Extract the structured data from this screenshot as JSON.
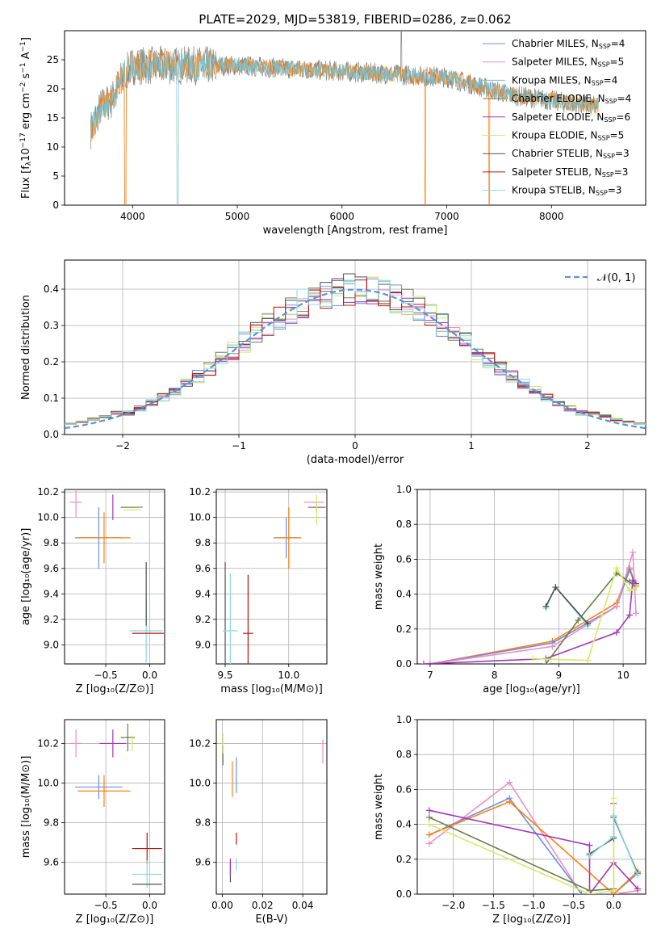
{
  "title": "PLATE=2029, MJD=53819, FIBERID=0286, z=0.062",
  "series_legend": [
    {
      "base": "Chabrier MILES, N",
      "sub": "SSP",
      "val": "=4",
      "color": "#6a8fdb"
    },
    {
      "base": "Salpeter MILES, N",
      "sub": "SSP",
      "val": "=5",
      "color": "#f08cc8"
    },
    {
      "base": "Kroupa MILES, N",
      "sub": "SSP",
      "val": "=4",
      "color": "#7ac0cc"
    },
    {
      "base": "Chabrier ELODIE, N",
      "sub": "SSP",
      "val": "=4",
      "color": "#6b7d4a"
    },
    {
      "base": "Salpeter ELODIE, N",
      "sub": "SSP",
      "val": "=6",
      "color": "#a037b8"
    },
    {
      "base": "Kroupa ELODIE, N",
      "sub": "SSP",
      "val": "=5",
      "color": "#d8e868"
    },
    {
      "base": "Chabrier STELIB, N",
      "sub": "SSP",
      "val": "=3",
      "color": "#505050"
    },
    {
      "base": "Salpeter STELIB, N",
      "sub": "SSP",
      "val": "=3",
      "color": "#c01010"
    },
    {
      "base": "Kroupa STELIB, N",
      "sub": "SSP",
      "val": "=3",
      "color": "#8ad8e0"
    }
  ],
  "chart_data": [
    {
      "id": "spectrum",
      "type": "line",
      "xlabel": "wavelength [Angstrom, rest frame]",
      "ylabel_parts": [
        "Flux [f",
        "λ",
        "10",
        "−17",
        "erg cm",
        "−2",
        "s",
        "−1",
        "A",
        "−1",
        "]"
      ],
      "xlim": [
        3350,
        8900
      ],
      "ylim": [
        0,
        30
      ],
      "xticks": [
        4000,
        5000,
        6000,
        7000,
        8000
      ],
      "yticks": [
        0,
        5,
        10,
        15,
        20,
        25
      ],
      "continuum": {
        "x": [
          3600,
          3700,
          3800,
          3900,
          4000,
          4200,
          4500,
          4800,
          5000,
          5500,
          6000,
          6500,
          7000,
          7200,
          7400,
          7600,
          7800,
          8000,
          8200,
          8400
        ],
        "y": [
          13,
          17,
          18,
          22,
          24,
          24,
          24,
          24,
          24,
          23.5,
          23,
          22.5,
          22,
          21,
          20,
          19,
          18.5,
          18,
          17.5,
          17
        ]
      },
      "colors": [
        "#808080",
        "#ff7f0e",
        "#7ac0cc"
      ]
    },
    {
      "id": "residual_hist",
      "type": "step",
      "xlabel": "(data-model)/error",
      "ylabel": "Normed distribution",
      "xlim": [
        -2.5,
        2.5
      ],
      "ylim": [
        0,
        0.48
      ],
      "xticks": [
        -2,
        -1,
        0,
        1,
        2
      ],
      "yticks": [
        0.0,
        0.1,
        0.2,
        0.3,
        0.4
      ],
      "legend_label": "𝒩(0, 1)",
      "normal_color": "#5f8fd6",
      "bin_width": 0.1
    },
    {
      "id": "age_vs_Z",
      "type": "errorbar",
      "xlabel": "Z [log₁₀(Z/Z⊙)]",
      "ylabel": "age  [log₁₀(age/yr)]",
      "xlim": [
        -0.97,
        0.17
      ],
      "ylim": [
        8.85,
        10.22
      ],
      "xticks": [
        -0.5,
        0.0
      ],
      "yticks": [
        9.0,
        9.2,
        9.4,
        9.6,
        9.8,
        10.0,
        10.2
      ],
      "points": [
        {
          "x": -0.58,
          "y": 9.84,
          "xerr": 0.27,
          "yerr": 0.24,
          "c": "#6a8fdb"
        },
        {
          "x": -0.52,
          "y": 9.84,
          "xerr": 0.3,
          "yerr": 0.2,
          "c": "#ff7f0e"
        },
        {
          "x": -0.84,
          "y": 10.12,
          "xerr": 0.07,
          "yerr": 0.12,
          "c": "#f08cc8"
        },
        {
          "x": -0.25,
          "y": 10.08,
          "xerr": 0.08,
          "yerr": 0.0,
          "c": "#a037b8"
        },
        {
          "x": -0.42,
          "y": 10.08,
          "xerr": 0.0,
          "yerr": 0.1,
          "c": "#a037b8"
        },
        {
          "x": -0.2,
          "y": 10.06,
          "xerr": 0.1,
          "yerr": 0.0,
          "c": "#d8e868"
        },
        {
          "x": -0.2,
          "y": 10.08,
          "xerr": 0.12,
          "yerr": 0.0,
          "c": "#6b7d4a"
        },
        {
          "x": -0.04,
          "y": 9.11,
          "xerr": 0.19,
          "yerr": 0.25,
          "c": "#8ad8e0"
        },
        {
          "x": -0.02,
          "y": 9.09,
          "xerr": 0.18,
          "yerr": 0.0,
          "c": "#c01010"
        },
        {
          "x": -0.04,
          "y": 9.4,
          "xerr": 0.0,
          "yerr": 0.25,
          "c": "#505050"
        }
      ]
    },
    {
      "id": "age_vs_mass",
      "type": "errorbar",
      "xlabel": "mass [log₁₀(M/M⊙)]",
      "ylabel": "",
      "xlim": [
        9.43,
        10.3
      ],
      "ylim": [
        8.85,
        10.22
      ],
      "xticks": [
        9.5,
        10.0
      ],
      "yticks": [
        9.0,
        9.2,
        9.4,
        9.6,
        9.8,
        10.0,
        10.2
      ],
      "points": [
        {
          "x": 9.98,
          "y": 9.84,
          "xerr": 0.1,
          "yerr": 0.16,
          "c": "#6a8fdb"
        },
        {
          "x": 10.0,
          "y": 9.84,
          "xerr": 0.1,
          "yerr": 0.24,
          "c": "#ff7f0e"
        },
        {
          "x": 10.2,
          "y": 10.12,
          "xerr": 0.08,
          "yerr": 0.0,
          "c": "#f08cc8"
        },
        {
          "x": 10.22,
          "y": 10.08,
          "xerr": 0.07,
          "yerr": 0.04,
          "c": "#a037b8"
        },
        {
          "x": 10.24,
          "y": 10.08,
          "xerr": 0.05,
          "yerr": 0.0,
          "c": "#6b7d4a"
        },
        {
          "x": 10.22,
          "y": 10.06,
          "xerr": 0.0,
          "yerr": 0.12,
          "c": "#d8e868"
        },
        {
          "x": 9.5,
          "y": 9.11,
          "xerr": 0.0,
          "yerr": 0.54,
          "c": "#505050"
        },
        {
          "x": 9.54,
          "y": 9.11,
          "xerr": 0.06,
          "yerr": 0.45,
          "c": "#8ad8e0"
        },
        {
          "x": 9.68,
          "y": 9.09,
          "xerr": 0.04,
          "yerr": 0.46,
          "c": "#c01010"
        }
      ]
    },
    {
      "id": "massweight_vs_age",
      "type": "line",
      "xlabel": "age  [log₁₀(age/yr)]",
      "ylabel": "mass weight",
      "xlim": [
        6.8,
        10.35
      ],
      "ylim": [
        0,
        1
      ],
      "xticks": [
        7,
        8,
        9,
        10
      ],
      "yticks": [
        0.0,
        0.2,
        0.4,
        0.6,
        0.8,
        1.0
      ],
      "series": [
        {
          "c": "#ff7f0e",
          "x": [
            7.0,
            8.9,
            9.9,
            10.1,
            10.2
          ],
          "y": [
            0.0,
            0.13,
            0.35,
            0.55,
            0.45
          ]
        },
        {
          "c": "#6a8fdb",
          "x": [
            7.0,
            8.9,
            9.9,
            10.1,
            10.2
          ],
          "y": [
            0.0,
            0.12,
            0.33,
            0.54,
            0.44
          ]
        },
        {
          "c": "#f08cc8",
          "x": [
            7.0,
            8.9,
            9.9,
            10.15,
            10.2
          ],
          "y": [
            0.0,
            0.1,
            0.33,
            0.64,
            0.29
          ]
        },
        {
          "c": "#a037b8",
          "x": [
            6.9,
            8.8,
            9.9,
            10.1,
            10.15,
            10.2
          ],
          "y": [
            0.0,
            0.03,
            0.18,
            0.28,
            0.48,
            0.46
          ]
        },
        {
          "c": "#6b7d4a",
          "x": [
            8.8,
            9.3,
            9.9,
            10.1,
            10.2
          ],
          "y": [
            0.0,
            0.25,
            0.52,
            0.47,
            0.44
          ]
        },
        {
          "c": "#d8e868",
          "x": [
            8.6,
            9.45,
            9.9,
            10.1,
            10.2
          ],
          "y": [
            0.03,
            0.02,
            0.55,
            0.42,
            0.44
          ]
        },
        {
          "c": "#8ad8e0",
          "x": [
            8.8,
            8.95,
            9.45
          ],
          "y": [
            0.32,
            0.44,
            0.22
          ]
        },
        {
          "c": "#505050",
          "x": [
            8.8,
            8.95,
            9.45
          ],
          "y": [
            0.33,
            0.44,
            0.23
          ]
        }
      ]
    },
    {
      "id": "mass_vs_Z",
      "type": "errorbar",
      "xlabel": "Z [log₁₀(Z/Z⊙)]",
      "ylabel": "mass [log₁₀(M/M⊙)]",
      "xlim": [
        -0.97,
        0.17
      ],
      "ylim": [
        9.44,
        10.32
      ],
      "xticks": [
        -0.5,
        0.0
      ],
      "yticks": [
        9.6,
        9.8,
        10.0,
        10.2
      ],
      "points": [
        {
          "x": -0.58,
          "y": 9.98,
          "xerr": 0.27,
          "yerr": 0.06,
          "c": "#6a8fdb"
        },
        {
          "x": -0.52,
          "y": 9.96,
          "xerr": 0.3,
          "yerr": 0.08,
          "c": "#ff7f0e"
        },
        {
          "x": -0.84,
          "y": 10.2,
          "xerr": 0.07,
          "yerr": 0.07,
          "c": "#f08cc8"
        },
        {
          "x": -0.42,
          "y": 10.2,
          "xerr": 0.15,
          "yerr": 0.07,
          "c": "#a037b8"
        },
        {
          "x": -0.25,
          "y": 10.23,
          "xerr": 0.08,
          "yerr": 0.07,
          "c": "#6b7d4a"
        },
        {
          "x": -0.2,
          "y": 10.2,
          "xerr": 0.0,
          "yerr": 0.04,
          "c": "#d8e868"
        },
        {
          "x": -0.03,
          "y": 9.67,
          "xerr": 0.17,
          "yerr": 0.08,
          "c": "#c01010"
        },
        {
          "x": -0.03,
          "y": 9.54,
          "xerr": 0.17,
          "yerr": 0.07,
          "c": "#8ad8e0"
        },
        {
          "x": -0.03,
          "y": 9.49,
          "xerr": 0.17,
          "yerr": 0.0,
          "c": "#505050"
        }
      ]
    },
    {
      "id": "mass_vs_EBV",
      "type": "errorbar",
      "xlabel": "E(B-V)",
      "ylabel": "",
      "xlim": [
        -0.003,
        0.052
      ],
      "ylim": [
        9.44,
        10.32
      ],
      "xticks": [
        0.0,
        0.02,
        0.04
      ],
      "yticks": [
        9.6,
        9.8,
        10.0,
        10.2
      ],
      "points": [
        {
          "x": 0.005,
          "y": 10.02,
          "xerr": 0,
          "yerr": 0.09,
          "c": "#ff7f0e"
        },
        {
          "x": 0.007,
          "y": 10.04,
          "xerr": 0,
          "yerr": 0.09,
          "c": "#6a8fdb"
        },
        {
          "x": 0.0003,
          "y": 10.14,
          "xerr": 0,
          "yerr": 0.05,
          "c": "#6b7d4a"
        },
        {
          "x": 0.0003,
          "y": 10.2,
          "xerr": 0,
          "yerr": 0.05,
          "c": "#d8e868"
        },
        {
          "x": 0.05,
          "y": 10.16,
          "xerr": 0,
          "yerr": 0.06,
          "c": "#f08cc8"
        },
        {
          "x": 0.007,
          "y": 9.72,
          "xerr": 0,
          "yerr": 0.03,
          "c": "#c01010"
        },
        {
          "x": 0.007,
          "y": 9.59,
          "xerr": 0,
          "yerr": 0.03,
          "c": "#8ad8e0"
        },
        {
          "x": 0.004,
          "y": 9.55,
          "xerr": 0,
          "yerr": 0.05,
          "c": "#505050"
        },
        {
          "x": 0.004,
          "y": 9.58,
          "xerr": 0,
          "yerr": 0.04,
          "c": "#a037b8"
        }
      ]
    },
    {
      "id": "massweight_vs_Z",
      "type": "line",
      "xlabel": "Z [log₁₀(Z/Z⊙)]",
      "ylabel": "mass weight",
      "xlim": [
        -2.45,
        0.4
      ],
      "ylim": [
        0,
        1
      ],
      "xticks": [
        -2.0,
        -1.5,
        -1.0,
        -0.5,
        0.0
      ],
      "yticks": [
        0.0,
        0.2,
        0.4,
        0.6,
        0.8,
        1.0
      ],
      "series": [
        {
          "c": "#f08cc8",
          "x": [
            -2.3,
            -1.3,
            -0.4,
            0.0,
            0.3
          ],
          "y": [
            0.29,
            0.64,
            0.0,
            0.0,
            0.02
          ]
        },
        {
          "c": "#6a8fdb",
          "x": [
            -2.3,
            -1.3,
            -0.4,
            0.0,
            0.3
          ],
          "y": [
            0.34,
            0.55,
            0.0,
            0.0,
            0.12
          ]
        },
        {
          "c": "#ff7f0e",
          "x": [
            -2.3,
            -1.3,
            0.0,
            0.3
          ],
          "y": [
            0.34,
            0.53,
            0.0,
            0.13
          ]
        },
        {
          "c": "#a037b8",
          "x": [
            -2.3,
            -0.3,
            -0.3,
            0.0,
            0.3
          ],
          "y": [
            0.48,
            0.28,
            0.0,
            0.18,
            0.03
          ]
        },
        {
          "c": "#6b7d4a",
          "x": [
            -2.3,
            -0.3,
            0.0,
            0.0
          ],
          "y": [
            0.44,
            0.02,
            0.03,
            0.52
          ]
        },
        {
          "c": "#d8e868",
          "x": [
            -2.3,
            -0.3,
            0.0,
            0.0
          ],
          "y": [
            0.4,
            0.0,
            0.02,
            0.55
          ]
        },
        {
          "c": "#505050",
          "x": [
            -0.3,
            0.0,
            0.0,
            0.3
          ],
          "y": [
            0.23,
            0.32,
            0.44,
            0.12
          ]
        },
        {
          "c": "#8ad8e0",
          "x": [
            -0.3,
            0.0,
            0.0,
            0.3
          ],
          "y": [
            0.22,
            0.33,
            0.45,
            0.11
          ]
        }
      ]
    }
  ]
}
